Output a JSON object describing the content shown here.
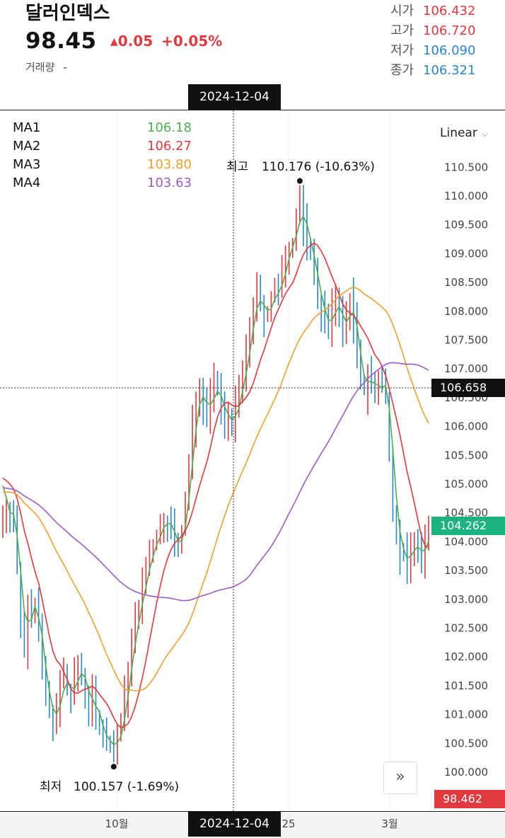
{
  "header": {
    "title": "달러인덱스",
    "price": "98.45",
    "change": "0.05",
    "change_pct": "+0.05%",
    "volume_label": "거래량",
    "volume_value": "-"
  },
  "ohlc": [
    {
      "label": "시가",
      "value": "106.432",
      "color": "#e0393e"
    },
    {
      "label": "고가",
      "value": "106.720",
      "color": "#e0393e"
    },
    {
      "label": "저가",
      "value": "106.090",
      "color": "#2a86c8"
    },
    {
      "label": "종가",
      "value": "106.321",
      "color": "#2a86c8"
    }
  ],
  "crosshair": {
    "date": "2024-12-04",
    "price": "106.658"
  },
  "scale_mode": "Linear",
  "tags": {
    "ma_last": "104.262",
    "last_price": "98.462"
  },
  "chart_data": {
    "type": "line",
    "subtype": "candlestick-with-moving-averages",
    "y_axis": {
      "min": 100.0,
      "max": 110.5,
      "step": 0.5,
      "side": "right",
      "ticks": [
        "110.500",
        "110.000",
        "109.500",
        "109.000",
        "108.500",
        "108.000",
        "107.500",
        "107.000",
        "106.500",
        "106.000",
        "105.500",
        "105.000",
        "104.500",
        "104.000",
        "103.500",
        "103.000",
        "102.500",
        "102.000",
        "101.500",
        "101.000",
        "100.500",
        "100.000"
      ]
    },
    "x_axis": {
      "ticks": [
        "10월",
        "25",
        "3월"
      ]
    },
    "legend": [
      {
        "name": "MA1",
        "value": "106.18",
        "color": "#4cae4f"
      },
      {
        "name": "MA2",
        "value": "106.27",
        "color": "#e0393e"
      },
      {
        "name": "MA3",
        "value": "103.80",
        "color": "#f0a030"
      },
      {
        "name": "MA4",
        "value": "103.63",
        "color": "#9a5cc6"
      }
    ],
    "annotations": {
      "high": {
        "label": "최고",
        "value": "110.176 (-10.63%)",
        "price": 110.176
      },
      "low": {
        "label": "최저",
        "value": "100.157 (-1.69%)",
        "price": 100.157
      }
    },
    "close": [
      104.4,
      104.6,
      104.5,
      104.3,
      103.5,
      102.6,
      102.2,
      103.0,
      102.7,
      102.9,
      102.4,
      101.8,
      101.3,
      101.1,
      100.9,
      101.0,
      101.5,
      101.7,
      101.4,
      101.3,
      101.6,
      101.8,
      101.7,
      101.4,
      101.1,
      101.3,
      101.0,
      100.8,
      100.6,
      100.5,
      100.5,
      100.4,
      100.6,
      100.8,
      101.3,
      101.8,
      102.2,
      102.6,
      102.9,
      103.2,
      103.5,
      103.8,
      103.9,
      104.1,
      104.2,
      104.4,
      104.3,
      104.2,
      104.0,
      103.8,
      104.2,
      104.7,
      105.3,
      106.0,
      106.5,
      106.6,
      106.4,
      106.2,
      106.5,
      106.7,
      106.6,
      106.3,
      106.1,
      106.2,
      106.0,
      106.3,
      106.6,
      106.9,
      107.2,
      107.7,
      108.1,
      108.3,
      108.1,
      107.9,
      108.0,
      108.2,
      108.4,
      108.3,
      108.6,
      109.0,
      109.1,
      109.2,
      109.6,
      109.8,
      109.5,
      109.2,
      109.0,
      108.7,
      108.2,
      108.0,
      107.9,
      107.6,
      108.0,
      108.3,
      107.9,
      107.6,
      107.9,
      108.2,
      107.8,
      107.2,
      106.8,
      106.6,
      106.9,
      106.8,
      106.5,
      106.8,
      106.7,
      106.6,
      105.6,
      104.6,
      104.1,
      103.8,
      103.7,
      103.6,
      103.9,
      104.0,
      103.8,
      103.7,
      104.0,
      104.3
    ]
  }
}
